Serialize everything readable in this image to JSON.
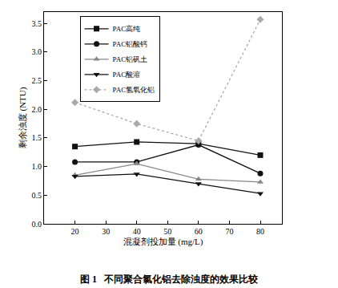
{
  "chart_data": {
    "type": "line",
    "title": "图 1   不同聚合氯化铝去除浊度的效果比较",
    "x_label": "混凝剂投加量 (mg/L)",
    "y_label": "剩余浊度 (NTU)",
    "x": [
      20,
      40,
      60,
      80
    ],
    "series": [
      {
        "name": "PAC高纯",
        "color": "#111111",
        "marker": "square",
        "line_style": "solid",
        "values": [
          1.35,
          1.43,
          1.4,
          1.2
        ]
      },
      {
        "name": "PAC铝酸钙",
        "color": "#111111",
        "marker": "circle",
        "line_style": "solid",
        "values": [
          1.08,
          1.08,
          1.38,
          0.88
        ]
      },
      {
        "name": "PAC铝矾土",
        "color": "#888888",
        "marker": "triangle-up",
        "line_style": "solid",
        "values": [
          0.85,
          1.05,
          0.78,
          0.73
        ]
      },
      {
        "name": "PAC酸溶",
        "color": "#111111",
        "marker": "triangle-down",
        "line_style": "solid",
        "values": [
          0.83,
          0.87,
          0.7,
          0.53
        ]
      },
      {
        "name": "PAC氢氧化铝",
        "color": "#aaaaaa",
        "marker": "diamond",
        "line_style": "dot",
        "values": [
          2.12,
          1.75,
          1.45,
          3.57
        ]
      }
    ],
    "xlim": [
      10,
      87
    ],
    "xticks": [
      20,
      30,
      40,
      50,
      60,
      70,
      80
    ],
    "ylim": [
      0,
      3.7
    ],
    "yticks": [
      {
        "value": 0,
        "label": "0.0"
      },
      {
        "value": 0.5,
        "label": "0.5"
      },
      {
        "value": 1,
        "label": "1.0"
      },
      {
        "value": 1.5,
        "label": "1.5"
      },
      {
        "value": 2,
        "label": "2.0"
      },
      {
        "value": 2.5,
        "label": "2.5"
      },
      {
        "value": 3,
        "label": "3.0"
      },
      {
        "value": 3.5,
        "label": "3.5"
      }
    ],
    "grid": false,
    "legend": "upper left"
  }
}
